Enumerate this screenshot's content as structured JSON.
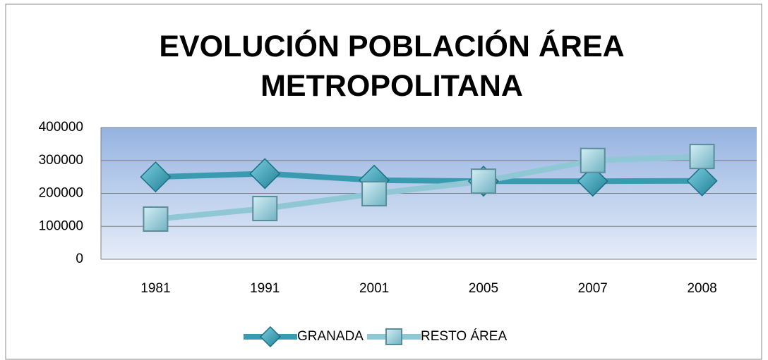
{
  "chart_data": {
    "type": "line",
    "title": "EVOLUCIÓN POBLACIÓN ÁREA METROPOLITANA",
    "categories": [
      "1981",
      "1991",
      "2001",
      "2005",
      "2007",
      "2008"
    ],
    "series": [
      {
        "name": "GRANADA",
        "color": "#3a9bb0",
        "values": [
          250000,
          260000,
          240000,
          237000,
          237000,
          238000
        ]
      },
      {
        "name": "RESTO ÁREA",
        "color": "#8fc7d4",
        "values": [
          122000,
          154000,
          199000,
          237000,
          300000,
          312000
        ]
      }
    ],
    "ylim": [
      0,
      400000
    ],
    "yticks": [
      0,
      100000,
      200000,
      300000,
      400000
    ],
    "grid": true,
    "legend": "bottom"
  }
}
